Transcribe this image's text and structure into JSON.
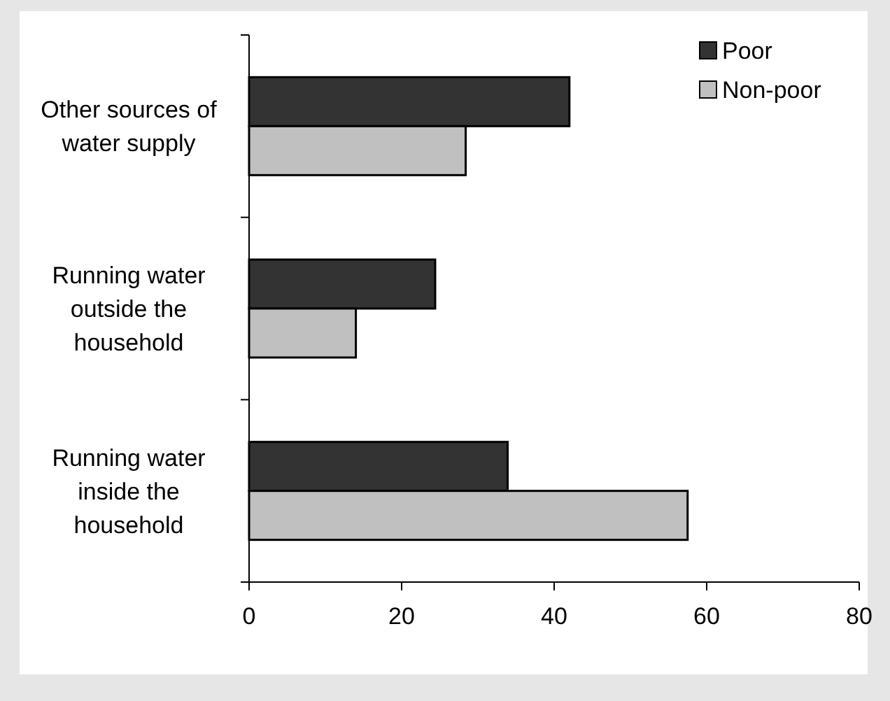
{
  "chart_data": {
    "type": "bar",
    "orientation": "horizontal",
    "categories": [
      "Other sources of water supply",
      "Running water outside the household",
      "Running water inside the household"
    ],
    "series": [
      {
        "name": "Poor",
        "color": "#333333",
        "values": [
          42,
          24.4,
          33.9
        ]
      },
      {
        "name": "Non-poor",
        "color": "#c0c0c0",
        "values": [
          28.4,
          14,
          57.5
        ]
      }
    ],
    "xlim": [
      0,
      80
    ],
    "xticks": [
      0,
      20,
      40,
      60,
      80
    ],
    "grid": false,
    "legend": "top right"
  }
}
